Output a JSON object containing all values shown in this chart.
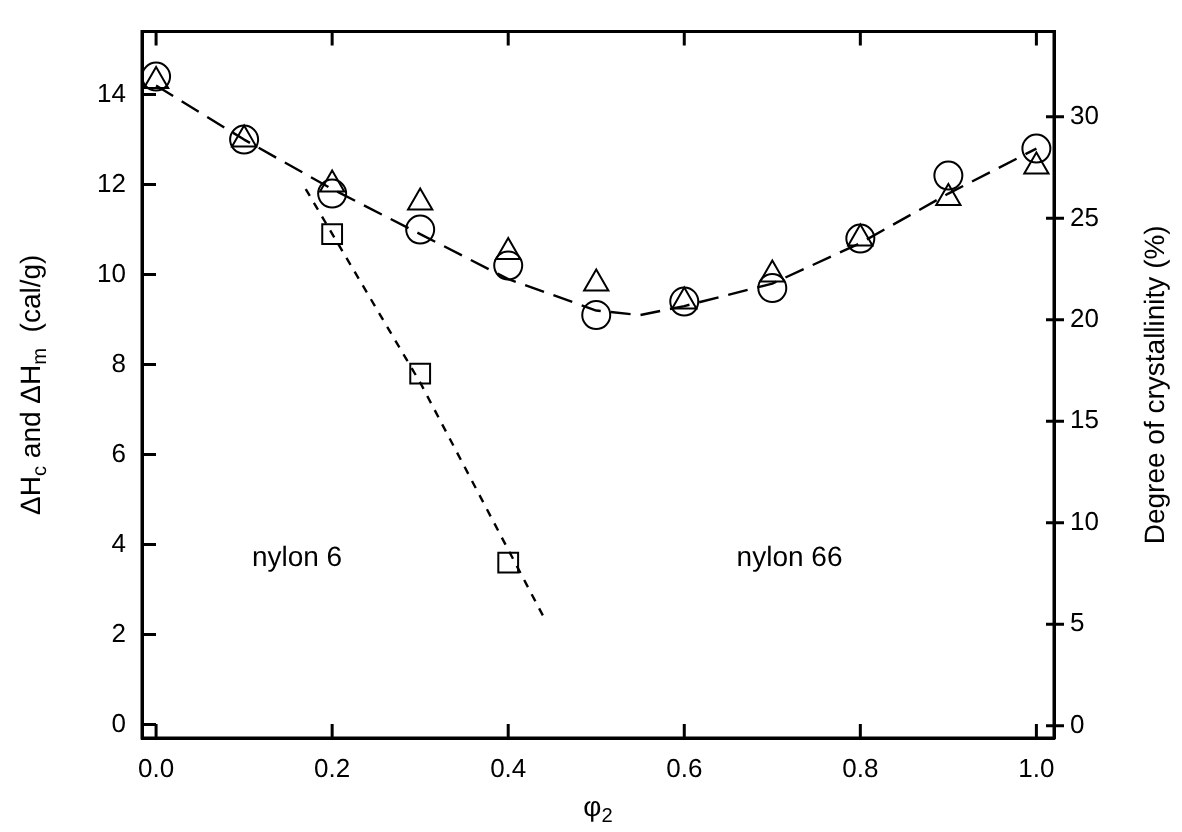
{
  "chart_data": {
    "type": "scatter",
    "xlabel": "φ$_{2}$",
    "ylabel": "ΔH$_{c}$ and ΔH$_{m}$  (cal/g)",
    "y2label": "Degree of crystallinity (%)",
    "xlim": [
      -0.016,
      1.02
    ],
    "ylim": [
      -0.3,
      15.4
    ],
    "y2lim": [
      -0.6,
      34.2
    ],
    "xticks": [
      {
        "value": 0,
        "label": "0.0"
      },
      {
        "value": 0.2,
        "label": "0.2"
      },
      {
        "value": 0.4,
        "label": "0.4"
      },
      {
        "value": 0.6,
        "label": "0.6"
      },
      {
        "value": 0.8,
        "label": "0.8"
      },
      {
        "value": 1,
        "label": "1.0"
      }
    ],
    "yticks": [
      0,
      2,
      4,
      6,
      8,
      10,
      12,
      14
    ],
    "y2ticks": [
      0,
      5,
      10,
      15,
      20,
      25,
      30
    ],
    "grid": false,
    "legend": false,
    "series": [
      {
        "type": "line",
        "color": "#000000",
        "marker": "none",
        "line_style": "dashed",
        "x": [
          0,
          0.1,
          0.2,
          0.3,
          0.4,
          0.5,
          0.55,
          0.6,
          0.7,
          0.8,
          0.9,
          1.0
        ],
        "values": [
          14.2,
          13.0,
          11.9,
          10.9,
          9.9,
          9.2,
          9.1,
          9.3,
          9.8,
          10.7,
          11.8,
          12.8
        ]
      },
      {
        "type": "line",
        "color": "#000000",
        "marker": "none",
        "line_style": "dotted",
        "x": [
          0.17,
          0.3,
          0.44
        ],
        "values": [
          11.9,
          7.6,
          2.4
        ]
      },
      {
        "color": "#000000",
        "marker": "square",
        "x": [
          0.2,
          0.3,
          0.4
        ],
        "values": [
          10.9,
          7.8,
          3.6
        ]
      },
      {
        "color": "#000000",
        "marker": "circle",
        "x": [
          0,
          0.1,
          0.2,
          0.3,
          0.4,
          0.5,
          0.6,
          0.7,
          0.8,
          0.9,
          1.0
        ],
        "values": [
          14.4,
          13.0,
          11.8,
          11.0,
          10.2,
          9.1,
          9.4,
          9.7,
          10.8,
          12.2,
          12.8
        ]
      },
      {
        "color": "#000000",
        "marker": "triangle",
        "x": [
          0,
          0.1,
          0.2,
          0.3,
          0.4,
          0.5,
          0.6,
          0.7,
          0.8,
          0.9,
          1.0
        ],
        "values": [
          14.3,
          13.0,
          12.0,
          11.6,
          10.5,
          9.8,
          9.4,
          10.0,
          10.8,
          11.7,
          12.4
        ]
      }
    ],
    "annotations": [
      "nylon 6",
      "nylon 66"
    ]
  }
}
